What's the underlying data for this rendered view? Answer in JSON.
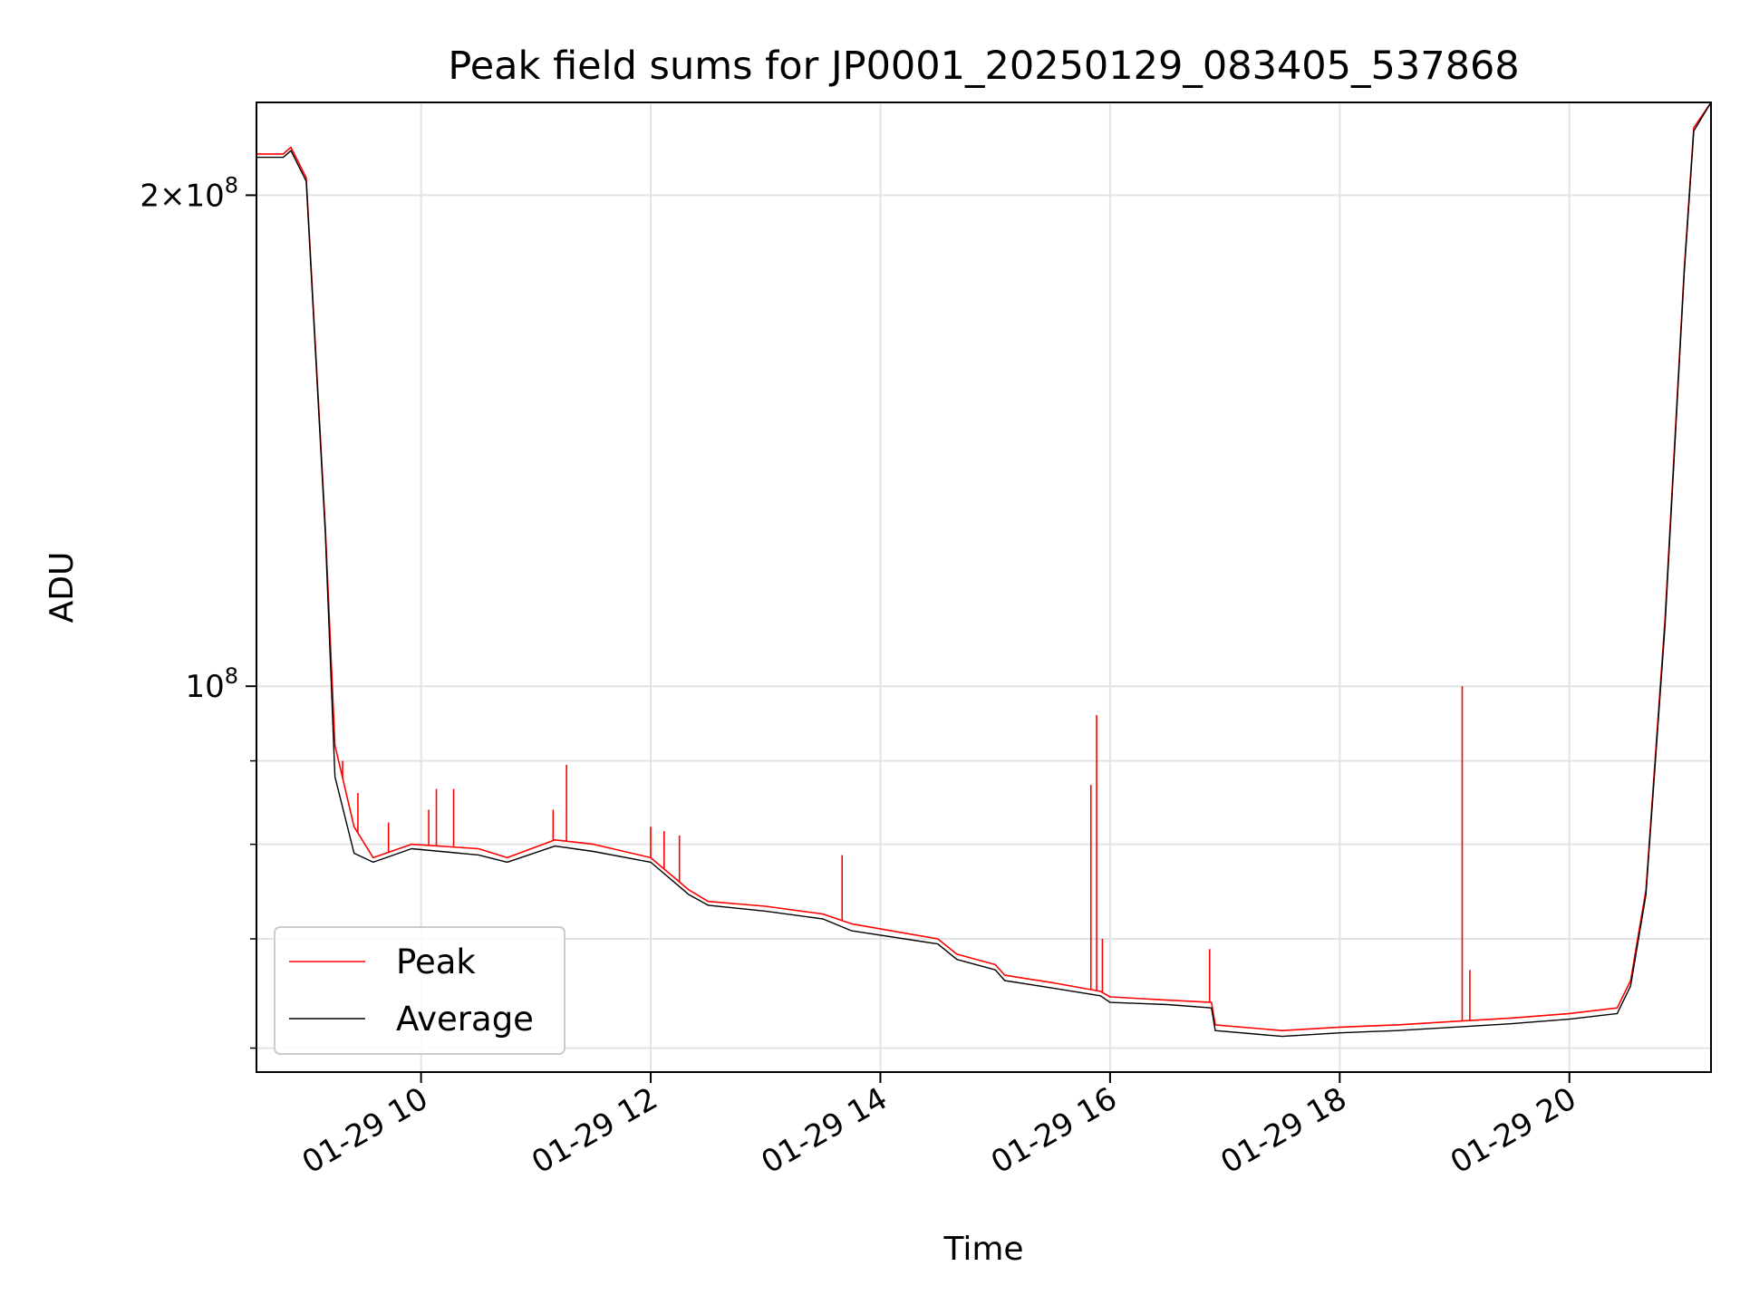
{
  "chart_data": {
    "type": "line",
    "title": "Peak field sums for JP0001_20250129_083405_537868",
    "xlabel": "Time",
    "ylabel": "ADU",
    "xlim": [
      "2025-01-29 08:34",
      "2025-01-29 21:14"
    ],
    "ylim": [
      58000000,
      228000000
    ],
    "yscale": "log",
    "grid": true,
    "legend_position": "lower-left",
    "x_ticks": [
      "01-29 10",
      "01-29 12",
      "01-29 14",
      "01-29 16",
      "01-29 18",
      "01-29 20"
    ],
    "y_tick_labels": [
      {
        "value": 200000000,
        "mantissa": "2",
        "exponent": "8"
      },
      {
        "value": 100000000,
        "mantissa": "",
        "exponent": "8"
      }
    ],
    "series": [
      {
        "name": "Peak",
        "color": "#ff0000",
        "x": [
          "2025-01-29 08:34",
          "2025-01-29 08:48",
          "2025-01-29 08:52",
          "2025-01-29 09:00",
          "2025-01-29 09:10",
          "2025-01-29 09:15",
          "2025-01-29 09:25",
          "2025-01-29 09:35",
          "2025-01-29 09:55",
          "2025-01-29 10:30",
          "2025-01-29 10:45",
          "2025-01-29 11:10",
          "2025-01-29 11:30",
          "2025-01-29 12:00",
          "2025-01-29 12:20",
          "2025-01-29 12:30",
          "2025-01-29 13:00",
          "2025-01-29 13:30",
          "2025-01-29 13:45",
          "2025-01-29 14:30",
          "2025-01-29 14:40",
          "2025-01-29 15:00",
          "2025-01-29 15:05",
          "2025-01-29 15:30",
          "2025-01-29 15:55",
          "2025-01-29 16:00",
          "2025-01-29 16:30",
          "2025-01-29 16:53",
          "2025-01-29 16:55",
          "2025-01-29 17:30",
          "2025-01-29 18:00",
          "2025-01-29 18:30",
          "2025-01-29 19:00",
          "2025-01-29 19:30",
          "2025-01-29 20:00",
          "2025-01-29 20:25",
          "2025-01-29 20:32",
          "2025-01-29 20:40",
          "2025-01-29 20:50",
          "2025-01-29 21:00",
          "2025-01-29 21:05",
          "2025-01-29 21:14"
        ],
        "y": [
          212000000,
          212000000,
          214000000,
          205000000,
          125000000,
          92000000,
          82000000,
          78500000,
          80000000,
          79500000,
          78500000,
          80500000,
          80000000,
          78500000,
          75000000,
          73800000,
          73300000,
          72500000,
          71500000,
          70000000,
          68500000,
          67500000,
          66500000,
          65800000,
          65000000,
          64500000,
          64200000,
          64000000,
          62000000,
          61500000,
          61800000,
          62000000,
          62300000,
          62600000,
          63000000,
          63500000,
          66000000,
          75000000,
          110000000,
          180000000,
          220000000,
          228000000
        ],
        "spikes": [
          {
            "x": "2025-01-29 09:19",
            "y": 90000000
          },
          {
            "x": "2025-01-29 09:27",
            "y": 86000000
          },
          {
            "x": "2025-01-29 09:43",
            "y": 82500000
          },
          {
            "x": "2025-01-29 10:04",
            "y": 84000000
          },
          {
            "x": "2025-01-29 10:08",
            "y": 86500000
          },
          {
            "x": "2025-01-29 10:17",
            "y": 86500000
          },
          {
            "x": "2025-01-29 11:09",
            "y": 84000000
          },
          {
            "x": "2025-01-29 11:16",
            "y": 89500000
          },
          {
            "x": "2025-01-29 12:00",
            "y": 82000000
          },
          {
            "x": "2025-01-29 12:07",
            "y": 81500000
          },
          {
            "x": "2025-01-29 12:15",
            "y": 81000000
          },
          {
            "x": "2025-01-29 13:40",
            "y": 78800000
          },
          {
            "x": "2025-01-29 15:50",
            "y": 87000000
          },
          {
            "x": "2025-01-29 15:53",
            "y": 96000000
          },
          {
            "x": "2025-01-29 15:56",
            "y": 70000000
          },
          {
            "x": "2025-01-29 16:52",
            "y": 69000000
          },
          {
            "x": "2025-01-29 19:04",
            "y": 100000000
          },
          {
            "x": "2025-01-29 19:08",
            "y": 67000000
          }
        ]
      },
      {
        "name": "Average",
        "color": "#000000",
        "x": [
          "2025-01-29 08:34",
          "2025-01-29 08:48",
          "2025-01-29 08:52",
          "2025-01-29 09:00",
          "2025-01-29 09:10",
          "2025-01-29 09:15",
          "2025-01-29 09:25",
          "2025-01-29 09:35",
          "2025-01-29 09:55",
          "2025-01-29 10:30",
          "2025-01-29 10:45",
          "2025-01-29 11:10",
          "2025-01-29 11:30",
          "2025-01-29 12:00",
          "2025-01-29 12:20",
          "2025-01-29 12:30",
          "2025-01-29 13:00",
          "2025-01-29 13:30",
          "2025-01-29 13:45",
          "2025-01-29 14:30",
          "2025-01-29 14:40",
          "2025-01-29 15:00",
          "2025-01-29 15:05",
          "2025-01-29 15:30",
          "2025-01-29 15:55",
          "2025-01-29 16:00",
          "2025-01-29 16:30",
          "2025-01-29 16:53",
          "2025-01-29 16:55",
          "2025-01-29 17:30",
          "2025-01-29 18:00",
          "2025-01-29 18:30",
          "2025-01-29 19:00",
          "2025-01-29 19:30",
          "2025-01-29 20:00",
          "2025-01-29 20:25",
          "2025-01-29 20:32",
          "2025-01-29 20:40",
          "2025-01-29 20:50",
          "2025-01-29 21:00",
          "2025-01-29 21:05",
          "2025-01-29 21:14"
        ],
        "y": [
          211000000,
          211000000,
          213000000,
          204000000,
          124000000,
          88000000,
          79000000,
          78000000,
          79500000,
          78800000,
          78000000,
          79800000,
          79200000,
          78000000,
          74500000,
          73400000,
          72800000,
          72000000,
          70800000,
          69500000,
          68000000,
          67000000,
          66000000,
          65300000,
          64600000,
          64000000,
          63800000,
          63500000,
          61500000,
          61000000,
          61300000,
          61500000,
          61800000,
          62100000,
          62500000,
          63000000,
          65500000,
          74500000,
          109000000,
          179000000,
          219000000,
          228000000
        ]
      }
    ]
  }
}
